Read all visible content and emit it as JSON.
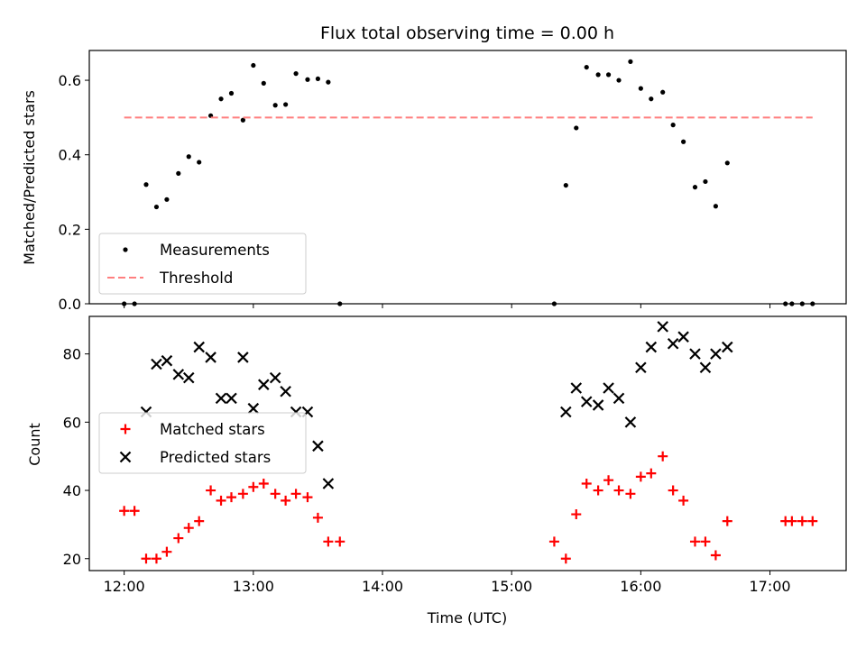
{
  "chart_data": [
    {
      "type": "scatter",
      "title": "Flux total observing time = 0.00 h",
      "xlabel": "",
      "ylabel": "Matched/Predicted stars",
      "xlim": [
        11.73,
        17.59
      ],
      "ylim": [
        0.0,
        0.68
      ],
      "xticks": [
        12,
        13,
        14,
        15,
        16,
        17
      ],
      "yticks": [
        0.0,
        0.2,
        0.4,
        0.6
      ],
      "ytick_labels": [
        "0.0",
        "0.2",
        "0.4",
        "0.6"
      ],
      "legend": {
        "position": "lower-left",
        "entries": [
          "Measurements",
          "Threshold"
        ]
      },
      "series": [
        {
          "name": "Measurements",
          "color": "#000000",
          "marker": "dot",
          "x": [
            12.0,
            12.08,
            12.17,
            12.25,
            12.33,
            12.42,
            12.5,
            12.58,
            12.67,
            12.75,
            12.83,
            12.92,
            13.0,
            13.08,
            13.17,
            13.25,
            13.33,
            13.42,
            13.5,
            13.58,
            13.67,
            15.33,
            15.42,
            15.5,
            15.58,
            15.67,
            15.75,
            15.83,
            15.92,
            16.0,
            16.08,
            16.17,
            16.25,
            16.33,
            16.42,
            16.5,
            16.58,
            16.67,
            17.12,
            17.17,
            17.25,
            17.33
          ],
          "y": [
            0.0,
            0.0,
            0.32,
            0.26,
            0.28,
            0.35,
            0.395,
            0.38,
            0.505,
            0.55,
            0.565,
            0.493,
            0.64,
            0.592,
            0.533,
            0.535,
            0.618,
            0.602,
            0.604,
            0.595,
            0.0,
            0.0,
            0.318,
            0.472,
            0.635,
            0.615,
            0.615,
            0.6,
            0.65,
            0.578,
            0.55,
            0.568,
            0.48,
            0.435,
            0.313,
            0.328,
            0.262,
            0.378,
            0.0,
            0.0,
            0.0,
            0.0
          ]
        },
        {
          "name": "Threshold",
          "color": "#ff7f7f",
          "style": "dashed-line",
          "x": [
            12.0,
            17.33
          ],
          "y": [
            0.5,
            0.5
          ]
        }
      ]
    },
    {
      "type": "scatter",
      "title": "",
      "xlabel": "Time (UTC)",
      "ylabel": "Count",
      "xlim": [
        11.73,
        17.59
      ],
      "ylim": [
        16.5,
        91.0
      ],
      "xticks": [
        12,
        13,
        14,
        15,
        16,
        17
      ],
      "xtick_labels": [
        "12:00",
        "13:00",
        "14:00",
        "15:00",
        "16:00",
        "17:00"
      ],
      "yticks": [
        20,
        40,
        60,
        80
      ],
      "ytick_labels": [
        "20",
        "40",
        "60",
        "80"
      ],
      "legend": {
        "position": "center-left",
        "entries": [
          "Matched stars",
          "Predicted stars"
        ]
      },
      "series": [
        {
          "name": "Matched stars",
          "color": "#ff0000",
          "marker": "plus",
          "x": [
            12.0,
            12.08,
            12.17,
            12.25,
            12.33,
            12.42,
            12.5,
            12.58,
            12.67,
            12.75,
            12.83,
            12.92,
            13.0,
            13.08,
            13.17,
            13.25,
            13.33,
            13.42,
            13.5,
            13.58,
            13.67,
            15.33,
            15.42,
            15.5,
            15.58,
            15.67,
            15.75,
            15.83,
            15.92,
            16.0,
            16.08,
            16.17,
            16.25,
            16.33,
            16.42,
            16.5,
            16.58,
            16.67,
            17.12,
            17.17,
            17.25,
            17.33
          ],
          "y": [
            34,
            34,
            20,
            20,
            22,
            26,
            29,
            31,
            40,
            37,
            38,
            39,
            41,
            42,
            39,
            37,
            39,
            38,
            32,
            25,
            25,
            25,
            20,
            33,
            42,
            40,
            43,
            40,
            39,
            44,
            45,
            50,
            40,
            37,
            25,
            25,
            21,
            31,
            31,
            31,
            31,
            31
          ]
        },
        {
          "name": "Predicted stars",
          "color": "#000000",
          "marker": "x",
          "x": [
            12.17,
            12.25,
            12.33,
            12.42,
            12.5,
            12.58,
            12.67,
            12.75,
            12.83,
            12.92,
            13.0,
            13.08,
            13.17,
            13.25,
            13.33,
            13.42,
            13.5,
            13.58,
            15.42,
            15.5,
            15.58,
            15.67,
            15.75,
            15.83,
            15.92,
            16.0,
            16.08,
            16.17,
            16.25,
            16.33,
            16.42,
            16.5,
            16.58,
            16.67
          ],
          "y": [
            63,
            77,
            78,
            74,
            73,
            82,
            79,
            67,
            67,
            79,
            64,
            71,
            73,
            69,
            63,
            63,
            53,
            42,
            63,
            70,
            66,
            65,
            70,
            67,
            60,
            76,
            82,
            88,
            83,
            85,
            80,
            76,
            80,
            82
          ]
        }
      ]
    }
  ]
}
